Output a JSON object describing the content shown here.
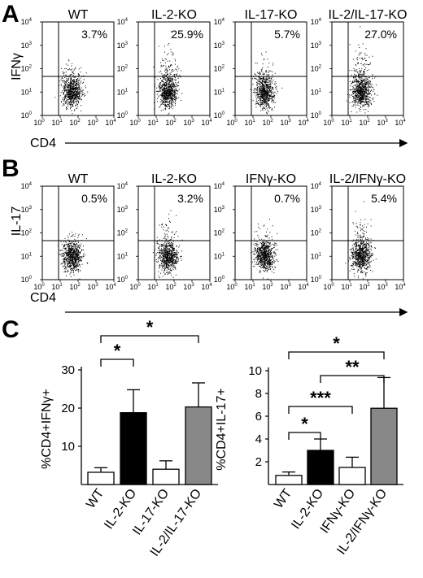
{
  "panels": {
    "A": {
      "letter": "A",
      "y_label": "IFNγ",
      "x_label": "CD4",
      "plots": [
        {
          "title": "WT",
          "percent": "3.7%",
          "density": 1
        },
        {
          "title": "IL-2-KO",
          "percent": "25.9%",
          "density": 2
        },
        {
          "title": "IL-17-KO",
          "percent": "5.7%",
          "density": 1.2
        },
        {
          "title": "IL-2/IL-17-KO",
          "percent": "27.0%",
          "density": 2.2
        }
      ]
    },
    "B": {
      "letter": "B",
      "y_label": "IL-17",
      "x_label": "CD4",
      "plots": [
        {
          "title": "WT",
          "percent": "0.5%",
          "density": 0.6
        },
        {
          "title": "IL-2-KO",
          "percent": "3.2%",
          "density": 1.2
        },
        {
          "title": "IFNγ-KO",
          "percent": "0.7%",
          "density": 0.7
        },
        {
          "title": "IL-2/IFNγ-KO",
          "percent": "5.4%",
          "density": 1.6
        }
      ]
    },
    "C": {
      "letter": "C"
    }
  },
  "flow_axis": {
    "ticks": [
      {
        "base": "10",
        "exp": "0"
      },
      {
        "base": "10",
        "exp": "1"
      },
      {
        "base": "10",
        "exp": "2"
      },
      {
        "base": "10",
        "exp": "3"
      },
      {
        "base": "10",
        "exp": "4"
      }
    ]
  },
  "chart_data": [
    {
      "type": "bar",
      "ylabel": "%CD4+IFNγ+",
      "ylim": [
        0,
        30
      ],
      "yticks": [
        10,
        20,
        30
      ],
      "categories": [
        "WT",
        "IL-2-KO",
        "IL-17-KO",
        "IL-2/IL-17-KO"
      ],
      "values": [
        3.2,
        18.8,
        4.0,
        20.3
      ],
      "errors": [
        1.2,
        6.0,
        2.2,
        6.3
      ],
      "colors": [
        "#ffffff",
        "#000000",
        "#ffffff",
        "#888888"
      ],
      "significance": [
        {
          "from": 0,
          "to": 1,
          "label": "*"
        },
        {
          "from": 0,
          "to": 3,
          "label": "*"
        }
      ]
    },
    {
      "type": "bar",
      "ylabel": "%CD4+IL-17+",
      "ylim": [
        0,
        10
      ],
      "yticks": [
        2,
        4,
        6,
        8,
        10
      ],
      "categories": [
        "WT",
        "IL-2-KO",
        "IFNγ-KO",
        "IL-2/IFNγ-KO"
      ],
      "values": [
        0.8,
        3.0,
        1.5,
        6.7
      ],
      "errors": [
        0.3,
        1.0,
        0.9,
        2.7
      ],
      "colors": [
        "#ffffff",
        "#000000",
        "#ffffff",
        "#888888"
      ],
      "significance": [
        {
          "from": 0,
          "to": 3,
          "label": "*"
        },
        {
          "from": 1,
          "to": 3,
          "label": "**"
        },
        {
          "from": 0,
          "to": 2,
          "label": "***"
        },
        {
          "from": 0,
          "to": 1,
          "label": "*"
        }
      ]
    }
  ]
}
